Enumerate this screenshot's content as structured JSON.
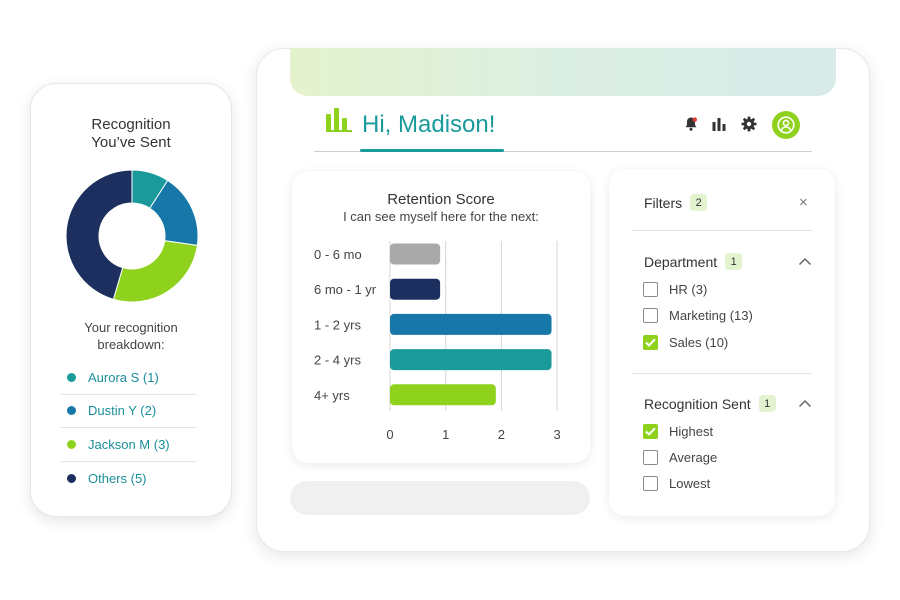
{
  "recognition_card": {
    "title_line1": "Recognition",
    "title_line2": "You’ve Sent",
    "subtitle_line1": "Your recognition",
    "subtitle_line2": "breakdown:",
    "donut_values": [
      1,
      2,
      3,
      5
    ],
    "legend": [
      {
        "label": "Aurora S (1)",
        "color": "#1a9a9a"
      },
      {
        "label": "Dustin Y (2)",
        "color": "#1677a8"
      },
      {
        "label": "Jackson M (3)",
        "color": "#8fd21e"
      },
      {
        "label": "Others (5)",
        "color": "#1c2f5e"
      }
    ]
  },
  "header": {
    "greeting": "Hi, Madison!",
    "icons": [
      "bell-icon",
      "bar-chart-icon",
      "gear-icon",
      "user-avatar-icon"
    ],
    "accent_color": "#1a9a9a",
    "avatar_color": "#8fd21e"
  },
  "retention_chart": {
    "title": "Retention Score",
    "subtitle": "I can see myself here for the next:"
  },
  "chart_data": {
    "type": "bar",
    "orientation": "horizontal",
    "title": "Retention Score",
    "subtitle": "I can see myself here for the next:",
    "categories": [
      "0 - 6 mo",
      "6 mo - 1 yr",
      "1 - 2 yrs",
      "2 - 4 yrs",
      "4+ yrs"
    ],
    "values": [
      0.9,
      0.9,
      2.9,
      2.9,
      1.9
    ],
    "colors": [
      "#a9a9a9",
      "#1c2f5e",
      "#1677a8",
      "#1a9a9a",
      "#8fd21e"
    ],
    "xlim": [
      0,
      3
    ],
    "xticks": [
      0,
      1,
      2,
      3
    ],
    "grid": true
  },
  "filters": {
    "title": "Filters",
    "count": "2",
    "close_symbol": "×",
    "sections": [
      {
        "title": "Department",
        "count": "1",
        "options": [
          {
            "label": "HR (3)",
            "checked": false
          },
          {
            "label": "Marketing (13)",
            "checked": false
          },
          {
            "label": "Sales (10)",
            "checked": true
          }
        ]
      },
      {
        "title": "Recognition Sent",
        "count": "1",
        "options": [
          {
            "label": "Highest",
            "checked": true
          },
          {
            "label": "Average",
            "checked": false
          },
          {
            "label": "Lowest",
            "checked": false
          }
        ]
      }
    ]
  }
}
